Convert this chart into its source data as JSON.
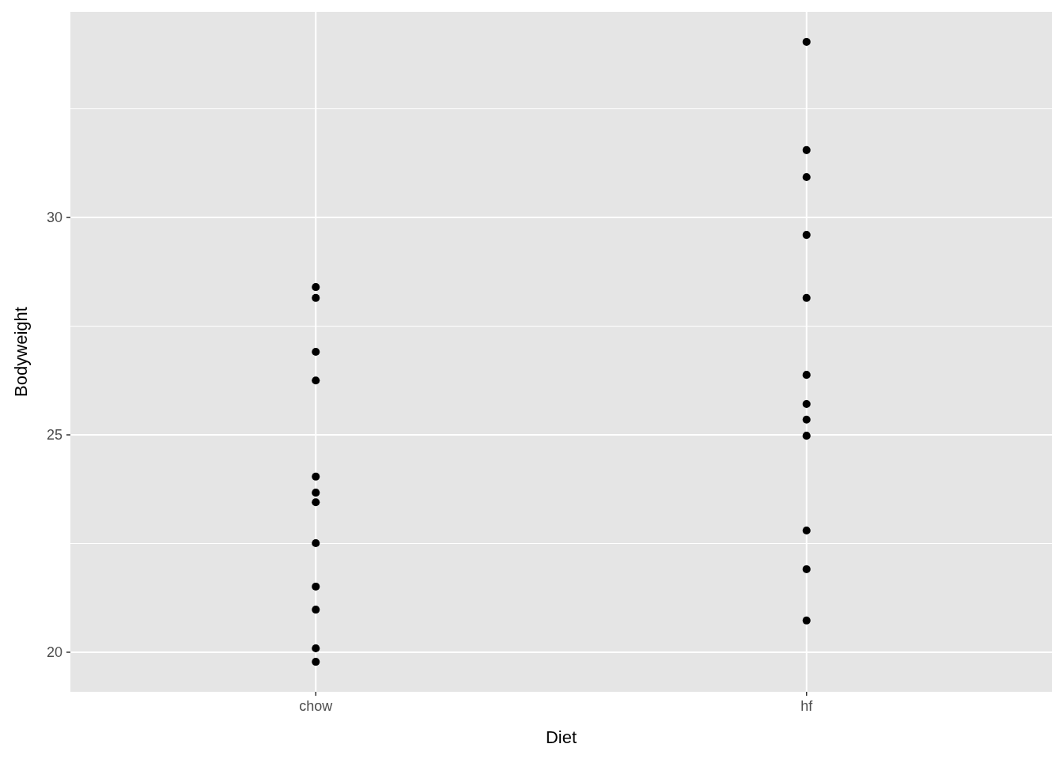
{
  "chart_data": {
    "type": "scatter",
    "xlabel": "Diet",
    "ylabel": "Bodyweight",
    "categories": [
      "chow",
      "hf"
    ],
    "ylim": [
      19.09,
      34.73
    ],
    "yticks": [
      20,
      25,
      30
    ],
    "grid": true,
    "marker": "circle",
    "series": [
      {
        "color": "#000000",
        "x": [
          "chow",
          "chow",
          "chow",
          "chow",
          "chow",
          "chow",
          "chow",
          "chow",
          "chow",
          "chow",
          "chow",
          "chow"
        ],
        "values": [
          28.4,
          28.15,
          26.91,
          26.25,
          24.04,
          23.67,
          23.45,
          22.51,
          21.51,
          20.98,
          20.09,
          19.78
        ]
      },
      {
        "color": "#000000",
        "x": [
          "hf",
          "hf",
          "hf",
          "hf",
          "hf",
          "hf",
          "hf",
          "hf",
          "hf",
          "hf",
          "hf",
          "hf"
        ],
        "values": [
          34.04,
          31.55,
          30.93,
          29.6,
          28.15,
          26.38,
          25.71,
          25.35,
          24.98,
          22.8,
          21.91,
          20.73
        ]
      }
    ]
  }
}
